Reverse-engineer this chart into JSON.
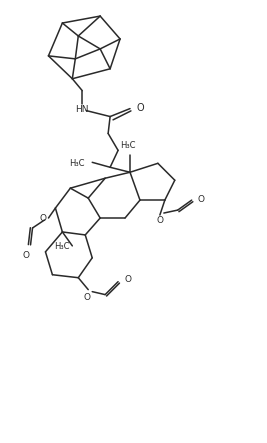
{
  "bg_color": "#ffffff",
  "line_color": "#2a2a2a",
  "line_width": 1.1,
  "font_size": 6.5,
  "figsize": [
    2.67,
    4.43
  ],
  "dpi": 100,
  "xlim": [
    0,
    267
  ],
  "ylim": [
    0,
    443
  ]
}
